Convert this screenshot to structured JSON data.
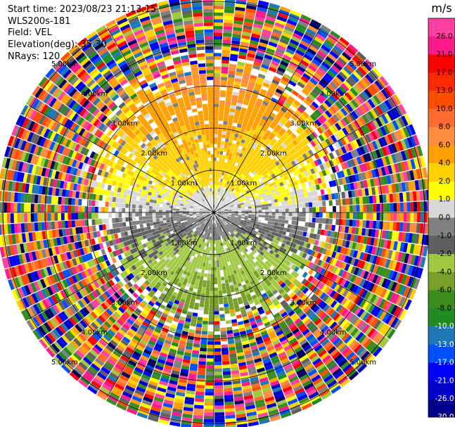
{
  "header": {
    "start_time": "Start time: 2023/08/23 21:13:15",
    "instrument": "WLS200s-181",
    "field": "Field: VEL",
    "elevation": "Elevation(deg): 35.30",
    "nrays": "NRays: 120"
  },
  "colorbar": {
    "unit": "m/s",
    "ticks": [
      "26.0",
      "21.0",
      "17.0",
      "13.0",
      "10.0",
      "8.0",
      "6.0",
      "4.0",
      "2.0",
      "1.0",
      "0.0",
      "-1.0",
      "-2.0",
      "-4.0",
      "-6.0",
      "-8.0",
      "-10.0",
      "-13.0",
      "-17.0",
      "-21.0",
      "-26.0",
      "-30.0"
    ],
    "colors": [
      "#ff40a0",
      "#ff1a8c",
      "#ff0000",
      "#ff2a00",
      "#ff4d00",
      "#ff6a30",
      "#ff8c40",
      "#ffa000",
      "#ffd000",
      "#ffff00",
      "#d8d8d8",
      "#808080",
      "#606060",
      "#a0c840",
      "#78a028",
      "#3c8c1e",
      "#228b22",
      "#1e78b4",
      "#0050ff",
      "#0000ff",
      "#0000c8",
      "#00008c",
      "#000060"
    ],
    "unit_label": "m/s"
  },
  "chart_data": {
    "type": "heatmap",
    "title": "",
    "field": "VEL",
    "units": "m/s",
    "elevation_deg": 35.3,
    "nrays": 120,
    "range_rings_km": [
      1.0,
      2.0,
      3.0,
      4.0,
      5.0
    ],
    "ring_labels": [
      "1.00km",
      "2.00km",
      "3.00km",
      "4.00km",
      "5.00km"
    ],
    "value_range": [
      -30.0,
      26.0
    ],
    "description_of_field": {
      "north_sector_speed_range": [
        2.0,
        8.0
      ],
      "south_sector_speed_range": [
        -8.0,
        -2.0
      ],
      "center_speed_range": [
        -1.0,
        1.0
      ],
      "outer_range_km_noise": [
        3.0,
        5.5
      ]
    }
  }
}
